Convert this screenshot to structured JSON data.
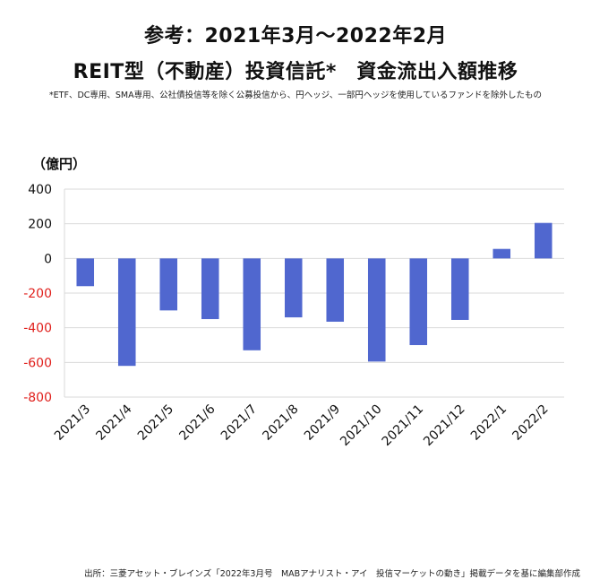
{
  "header": {
    "title_line1": "参考：2021年3月～2022年2月",
    "title_line2": "REIT型（不動産）投資信託*　資金流出入額推移",
    "note": "*ETF、DC専用、SMA専用、公社債投信等を除く公募投信から、円ヘッジ、一部円ヘッジを使用しているファンドを除外したもの",
    "unit_label": "（億円）"
  },
  "chart_data": {
    "type": "bar",
    "categories": [
      "2021/3",
      "2021/4",
      "2021/5",
      "2021/6",
      "2021/7",
      "2021/8",
      "2021/9",
      "2021/10",
      "2021/11",
      "2021/12",
      "2022/1",
      "2022/2"
    ],
    "series": [
      {
        "values": [
          -160,
          -620,
          -300,
          -350,
          -530,
          -340,
          -365,
          -595,
          -500,
          -355,
          55,
          205
        ]
      }
    ],
    "ylabel": "（億円）",
    "ylim": [
      -800,
      400
    ],
    "yticks": [
      400,
      200,
      0,
      -200,
      -400,
      -600,
      -800
    ],
    "grid": true,
    "colors": {
      "bar": "#5067cf",
      "negative_tick": "#e0201c",
      "positive_tick": "#111111",
      "grid": "#d9d9d9"
    }
  },
  "footer": {
    "source": "出所：三菱アセット・ブレインズ「2022年3月号　MABアナリスト・アイ　投信マーケットの動き」掲載データを基に編集部作成"
  }
}
